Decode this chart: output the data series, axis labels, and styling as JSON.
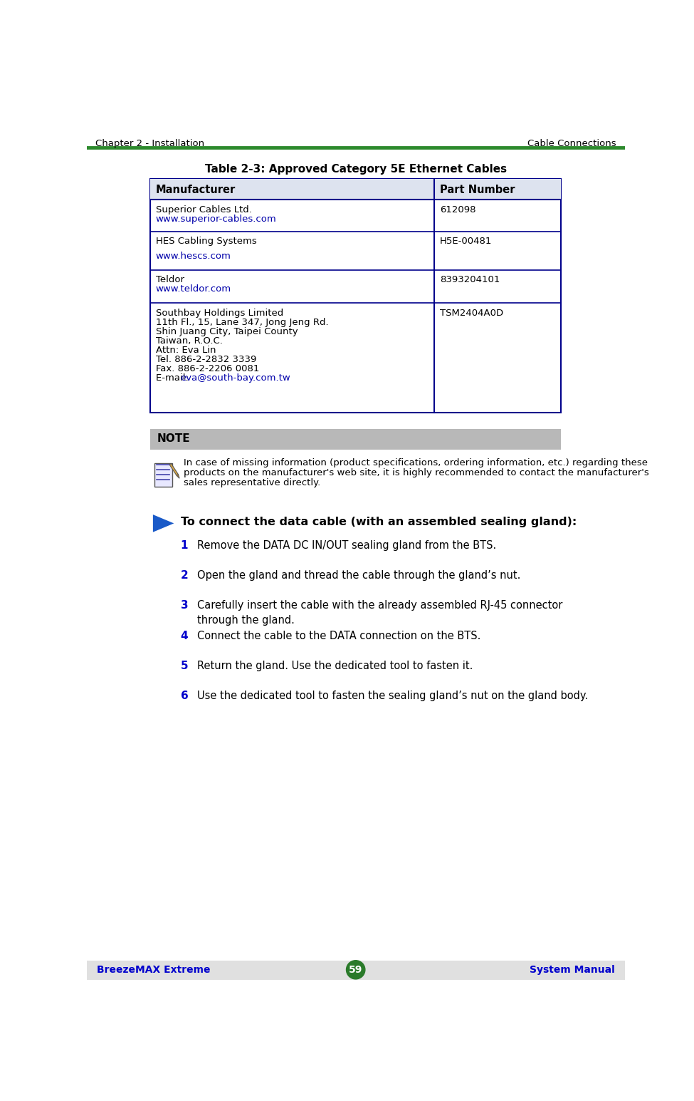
{
  "page_bg": "#ffffff",
  "header_left": "Chapter 2 - Installation",
  "header_right": "Cable Connections",
  "header_line_color": "#2d8a2d",
  "footer_bg": "#e0e0e0",
  "footer_left": "BreezeMAX Extreme",
  "footer_center": "59",
  "footer_right": "System Manual",
  "footer_page_circle_color": "#2a7a2a",
  "footer_text_color": "#0000cc",
  "table_title": "Table 2-3: Approved Category 5E Ethernet Cables",
  "table_header_bg": "#dde3ef",
  "table_border_color": "#00008b",
  "table_col1_header": "Manufacturer",
  "table_col2_header": "Part Number",
  "table_rows": [
    {
      "col1_lines": [
        "Superior Cables Ltd.",
        "www.superior-cables.com"
      ],
      "col1_link_indices": [
        1
      ],
      "col2": "612098"
    },
    {
      "col1_lines": [
        "HES Cabling Systems",
        "",
        "www.hescs.com"
      ],
      "col1_link_indices": [
        2
      ],
      "col2": "H5E-00481"
    },
    {
      "col1_lines": [
        "Teldor",
        "www.teldor.com"
      ],
      "col1_link_indices": [
        1
      ],
      "col2": "8393204101"
    },
    {
      "col1_lines": [
        "Southbay Holdings Limited",
        "11th Fl., 15, Lane 347, Jong Jeng Rd.",
        "Shin Juang City, Taipei County",
        "Taiwan, R.O.C.",
        "Attn: Eva Lin",
        "Tel. 886-2-2832 3339",
        "Fax. 886-2-2206 0081",
        "E-mail: eva@south-bay.com.tw"
      ],
      "col1_link_indices": [
        7
      ],
      "col2": "TSM2404A0D"
    }
  ],
  "note_bg": "#b8b8b8",
  "note_label": "NOTE",
  "note_text_line1": "In case of missing information (product specifications, ordering information, etc.) regarding these",
  "note_text_line2": "products on the manufacturer's web site, it is highly recommended to contact the manufacturer's",
  "note_text_line3": "sales representative directly.",
  "procedure_title": "To connect the data cable (with an assembled sealing gland):",
  "steps": [
    "Remove the DATA DC IN/OUT sealing gland from the BTS.",
    "Open the gland and thread the cable through the gland’s nut.",
    "Carefully insert the cable with the already assembled RJ-45 connector\nthrough the gland.",
    "Connect the cable to the DATA connection on the BTS.",
    "Return the gland. Use the dedicated tool to fasten it.",
    "Use the dedicated tool to fasten the sealing gland’s nut on the gland body."
  ],
  "step_num_color": "#0000cc",
  "arrow_color": "#1a5ac8",
  "text_color": "#000000",
  "link_color": "#0000aa"
}
